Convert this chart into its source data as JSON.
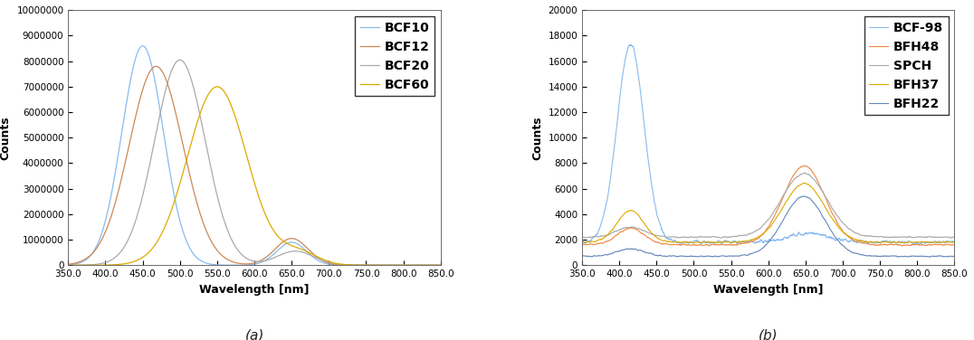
{
  "fig_width": 10.76,
  "fig_height": 3.76,
  "dpi": 100,
  "ax1": {
    "xlim": [
      350,
      850
    ],
    "ylim": [
      0,
      10000000
    ],
    "xlabel": "Wavelength [nm]",
    "ylabel": "Counts",
    "yticks": [
      0,
      1000000,
      2000000,
      3000000,
      4000000,
      5000000,
      6000000,
      7000000,
      8000000,
      9000000,
      10000000
    ],
    "xticks": [
      350.0,
      400.0,
      450.0,
      500.0,
      550.0,
      600.0,
      650.0,
      700.0,
      750.0,
      800.0,
      850.0
    ],
    "label_a": "(a)",
    "series": [
      {
        "label": "BCF10",
        "color": "#88BBEE",
        "peak": 450,
        "sigma": 28,
        "amplitude": 8600000,
        "peak2": 650,
        "amp2": 900000,
        "sigma2": 20
      },
      {
        "label": "BCF12",
        "color": "#CC8855",
        "peak": 468,
        "sigma": 36,
        "amplitude": 7800000,
        "peak2": 650,
        "amp2": 1050000,
        "sigma2": 22
      },
      {
        "label": "BCF20",
        "color": "#AAAAAA",
        "peak": 500,
        "sigma": 34,
        "amplitude": 8050000,
        "peak2": 655,
        "amp2": 550000,
        "sigma2": 25
      },
      {
        "label": "BCF60",
        "color": "#DDAA00",
        "peak": 550,
        "sigma": 40,
        "amplitude": 7000000,
        "peak2": 660,
        "amp2": 500000,
        "sigma2": 25
      }
    ]
  },
  "ax2": {
    "xlim": [
      350,
      850
    ],
    "ylim": [
      0,
      20000
    ],
    "xlabel": "Wavelength [nm]",
    "ylabel": "Counts",
    "yticks": [
      0,
      2000,
      4000,
      6000,
      8000,
      10000,
      12000,
      14000,
      16000,
      18000,
      20000
    ],
    "xticks": [
      350.0,
      400.0,
      450.0,
      500.0,
      550.0,
      600.0,
      650.0,
      700.0,
      750.0,
      800.0,
      850.0
    ],
    "label_b": "(b)",
    "series": [
      {
        "label": "BCF-98",
        "color": "#88BBEE",
        "peak": 415,
        "sigma": 18,
        "amplitude": 15500,
        "base": 1800,
        "peak2": 655,
        "amp2": 700,
        "sigma2": 25,
        "noise": 180
      },
      {
        "label": "BFH48",
        "color": "#EE8844",
        "peak": 415,
        "sigma": 18,
        "amplitude": 1300,
        "base": 1600,
        "peak2": 648,
        "amp2": 6200,
        "sigma2": 28,
        "noise": 100
      },
      {
        "label": "SPCH",
        "color": "#AAAAAA",
        "peak": 415,
        "sigma": 18,
        "amplitude": 800,
        "base": 2200,
        "peak2": 648,
        "amp2": 5000,
        "sigma2": 30,
        "noise": 100
      },
      {
        "label": "BFH37",
        "color": "#DDAA00",
        "peak": 415,
        "sigma": 18,
        "amplitude": 2500,
        "base": 1800,
        "peak2": 648,
        "amp2": 4600,
        "sigma2": 28,
        "noise": 80
      },
      {
        "label": "BFH22",
        "color": "#6688BB",
        "peak": 415,
        "sigma": 18,
        "amplitude": 600,
        "base": 700,
        "peak2": 648,
        "amp2": 4700,
        "sigma2": 28,
        "noise": 80
      }
    ]
  },
  "background_color": "#FFFFFF",
  "tick_label_fontsize": 7.5,
  "axis_label_fontsize": 9,
  "legend_fontsize": 8,
  "subplot_label_fontsize": 11
}
